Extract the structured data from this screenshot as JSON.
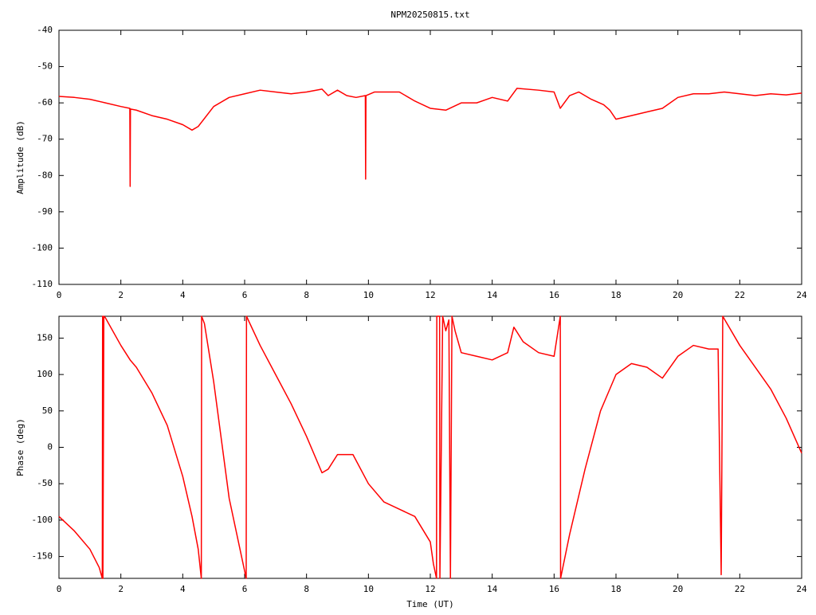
{
  "chart_data": [
    {
      "type": "line",
      "title": "NPM20250815.txt",
      "ylabel": "Amplitude (dB)",
      "ylim": [
        -110,
        -40
      ],
      "yticks": [
        -110,
        -100,
        -90,
        -80,
        -70,
        -60,
        -50,
        -40
      ],
      "xlim": [
        0,
        24
      ],
      "xticks": [
        0,
        2,
        4,
        6,
        8,
        10,
        12,
        14,
        16,
        18,
        20,
        22,
        24
      ],
      "x": [
        0,
        0.5,
        1,
        1.5,
        2,
        2.29,
        2.3,
        2.31,
        2.5,
        3,
        3.5,
        4,
        4.3,
        4.5,
        5,
        5.5,
        6,
        6.5,
        7,
        7.5,
        8,
        8.5,
        8.7,
        9,
        9.3,
        9.6,
        9.9,
        9.91,
        9.92,
        10.2,
        11,
        11.5,
        12,
        12.5,
        13,
        13.5,
        14,
        14.5,
        14.8,
        15.5,
        16,
        16.2,
        16.5,
        16.8,
        17.2,
        17.6,
        17.8,
        18,
        18.5,
        19,
        19.5,
        20,
        20.5,
        21,
        21.5,
        22,
        22.5,
        23,
        23.5,
        24
      ],
      "series": [
        {
          "color": "#ff0000",
          "values": [
            -58.2,
            -58.5,
            -59,
            -60,
            -61,
            -61.5,
            -83,
            -61.7,
            -62,
            -63.5,
            -64.5,
            -66,
            -67.5,
            -66.5,
            -61,
            -58.5,
            -57.5,
            -56.5,
            -57,
            -57.5,
            -57,
            -56.2,
            -58,
            -56.5,
            -58,
            -58.5,
            -58,
            -81,
            -58,
            -57,
            -57,
            -59.5,
            -61.5,
            -62,
            -60,
            -60,
            -58.5,
            -59.5,
            -56,
            -56.5,
            -57,
            -61.5,
            -58,
            -57,
            -59,
            -60.5,
            -62,
            -64.5,
            -63.5,
            -62.5,
            -61.5,
            -58.5,
            -57.5,
            -57.5,
            -57,
            -57.5,
            -58,
            -57.5,
            -57.8,
            -57.3
          ]
        }
      ]
    },
    {
      "type": "line",
      "xlabel": "Time (UT)",
      "ylabel": "Phase (deg)",
      "ylim": [
        -180,
        180
      ],
      "yticks": [
        -150,
        -100,
        -50,
        0,
        50,
        100,
        150
      ],
      "xlim": [
        0,
        24
      ],
      "xticks": [
        0,
        2,
        4,
        6,
        8,
        10,
        12,
        14,
        16,
        18,
        20,
        22,
        24
      ],
      "x": [
        0,
        0.5,
        1,
        1.3,
        1.4,
        1.41,
        1.42,
        1.45,
        1.5,
        2,
        2.3,
        2.5,
        3,
        3.5,
        4,
        4.3,
        4.5,
        4.6,
        4.61,
        4.7,
        5,
        5.5,
        6,
        6.05,
        6.06,
        6.5,
        7,
        7.5,
        8,
        8.5,
        8.7,
        9,
        9.5,
        10,
        10.5,
        11,
        11.5,
        12,
        12.1,
        12.2,
        12.21,
        12.3,
        12.31,
        12.4,
        12.5,
        12.6,
        12.65,
        12.7,
        12.8,
        13,
        13.5,
        14,
        14.5,
        14.7,
        15,
        15.5,
        16,
        16.2,
        16.21,
        16.5,
        17,
        17.5,
        18,
        18.5,
        19,
        19.5,
        20,
        20.5,
        21,
        21.3,
        21.4,
        21.45,
        22,
        22.5,
        23,
        23.5,
        24
      ],
      "series": [
        {
          "color": "#ff0000",
          "values": [
            -95,
            -115,
            -140,
            -165,
            -180,
            180,
            -180,
            180,
            178,
            140,
            120,
            110,
            75,
            30,
            -40,
            -95,
            -140,
            -180,
            180,
            170,
            90,
            -70,
            -170,
            -180,
            180,
            140,
            100,
            60,
            15,
            -35,
            -30,
            -10,
            -10,
            -50,
            -75,
            -85,
            -95,
            -130,
            -160,
            -180,
            180,
            180,
            -180,
            180,
            160,
            175,
            -180,
            180,
            160,
            130,
            125,
            120,
            130,
            165,
            145,
            130,
            125,
            180,
            -180,
            -120,
            -30,
            50,
            100,
            115,
            110,
            95,
            125,
            140,
            135,
            135,
            -175,
            180,
            140,
            110,
            80,
            40,
            -8
          ]
        }
      ]
    }
  ]
}
